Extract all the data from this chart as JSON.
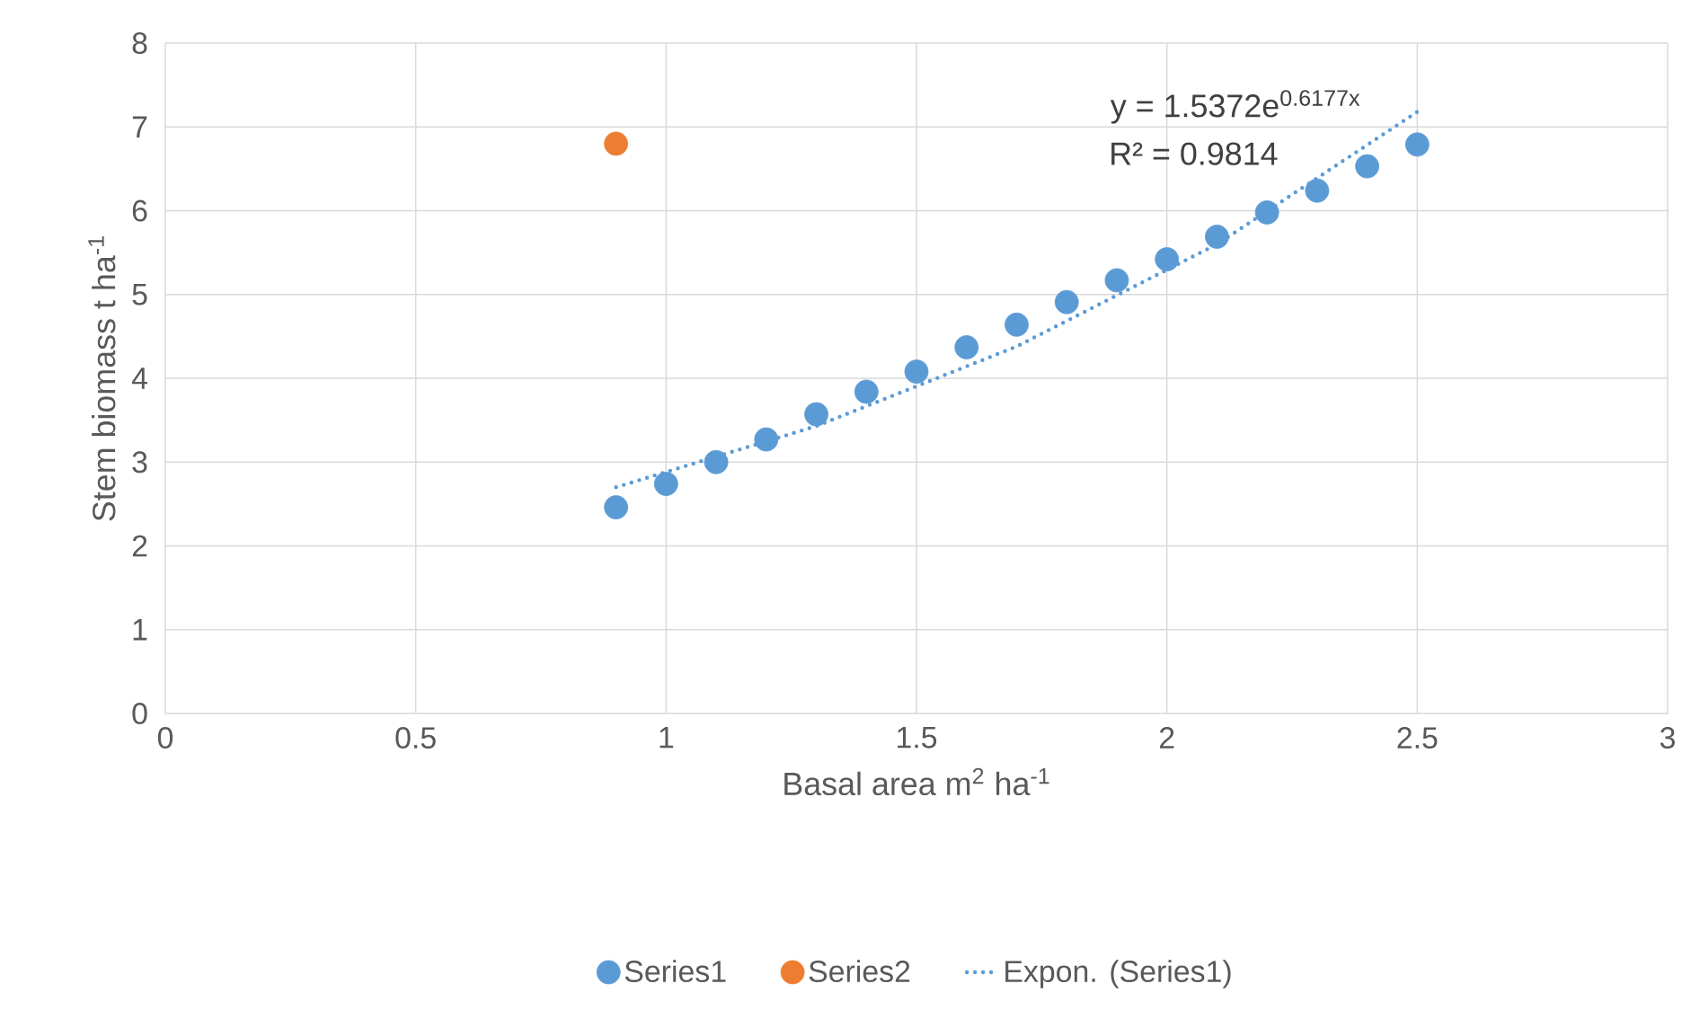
{
  "chart_data": {
    "type": "scatter",
    "xlabel": "Basal area m$^{2}$ ha$^{-1}$",
    "ylabel": "Stem biomass t ha$^{-1}$",
    "xlim": [
      0,
      3
    ],
    "ylim": [
      0,
      8
    ],
    "xticks": [
      0,
      0.5,
      1,
      1.5,
      2,
      2.5,
      3
    ],
    "yticks": [
      0,
      1,
      2,
      3,
      4,
      5,
      6,
      7,
      8
    ],
    "grid": true,
    "legend": "bottom",
    "annotations": [
      "y = 1.5372e$^{0.6177x}$",
      "R² = 0.9814"
    ],
    "series": [
      {
        "name": "Series1",
        "color": "#5b9bd5",
        "marker": "circle",
        "x": [
          0.9,
          1.0,
          1.1,
          1.2,
          1.3,
          1.4,
          1.5,
          1.6,
          1.7,
          1.8,
          1.9,
          2.0,
          2.1,
          2.2,
          2.3,
          2.4,
          2.5
        ],
        "values": [
          2.46,
          2.74,
          3.0,
          3.27,
          3.57,
          3.84,
          4.08,
          4.37,
          4.64,
          4.91,
          5.17,
          5.42,
          5.69,
          5.98,
          6.24,
          6.53,
          6.79
        ]
      },
      {
        "name": "Series2",
        "color": "#ed7d31",
        "marker": "circle",
        "x": [
          0.9
        ],
        "values": [
          6.8
        ]
      },
      {
        "name": "Expon. (Series1)",
        "type": "line",
        "color": "#5b9bd5",
        "line_style": "dotted",
        "marker": "none",
        "x": [
          0.9,
          1.3,
          1.7,
          2.1,
          2.5
        ],
        "values": [
          2.7,
          3.43,
          4.38,
          5.6,
          7.18
        ]
      }
    ]
  }
}
